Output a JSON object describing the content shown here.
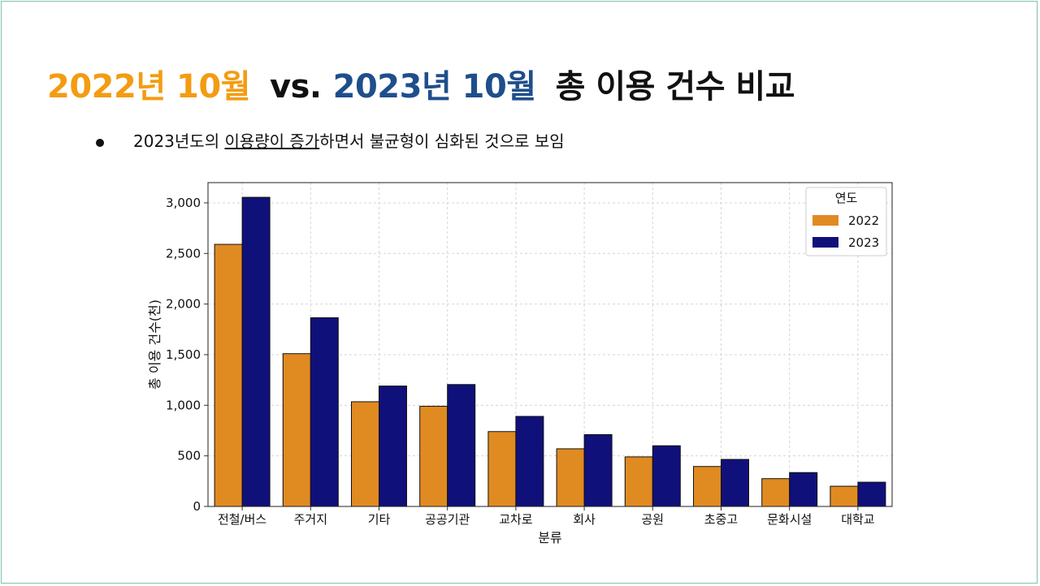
{
  "slide": {
    "title_part1": "2022년 10월",
    "title_vs": "vs.",
    "title_part2": "2023년 10월",
    "title_part3": "총 이용 건수 비교",
    "bullet_pre": "2023년도의 ",
    "bullet_underlined": "이용량이 증가",
    "bullet_post": "하면서 불균형이 심화된 것으로 보임"
  },
  "colors": {
    "orange": "#f39c12",
    "blue": "#1f4e8c",
    "bar2022": "#e08a22",
    "bar2023": "#10107a"
  },
  "chart_data": {
    "type": "bar",
    "title": "",
    "xlabel": "분류",
    "ylabel": "총 이용 건수(천)",
    "ylim": [
      0,
      3200
    ],
    "yticks": [
      0,
      500,
      1000,
      1500,
      2000,
      2500,
      3000
    ],
    "ytick_labels": [
      "0",
      "500",
      "1,000",
      "1,500",
      "2,000",
      "2,500",
      "3,000"
    ],
    "grid": true,
    "legend_title": "연도",
    "legend_position": "top-right",
    "categories": [
      "전철/버스",
      "주거지",
      "기타",
      "공공기관",
      "교차로",
      "회사",
      "공원",
      "초중고",
      "문화시설",
      "대학교"
    ],
    "series": [
      {
        "name": "2022",
        "values": [
          2590,
          1510,
          1035,
          990,
          740,
          570,
          490,
          395,
          275,
          200
        ]
      },
      {
        "name": "2023",
        "values": [
          3055,
          1865,
          1190,
          1205,
          890,
          710,
          600,
          465,
          335,
          240
        ]
      }
    ]
  }
}
